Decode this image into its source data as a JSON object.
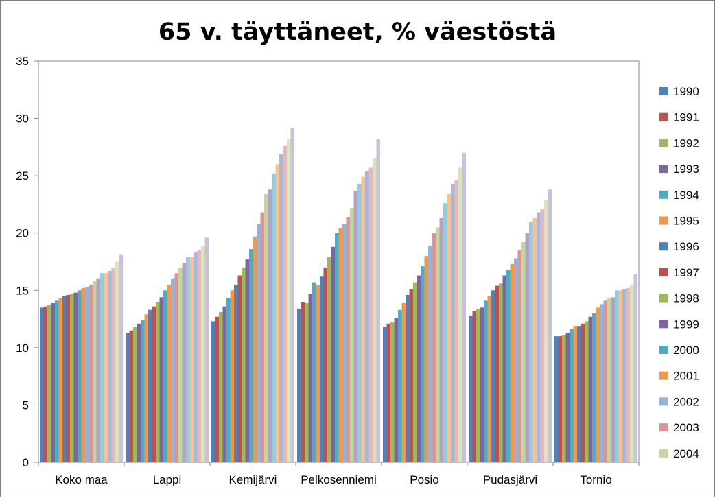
{
  "chart_data": {
    "type": "bar",
    "title": "65 v. täyttäneet, % väestöstä",
    "xlabel": "",
    "ylabel": "",
    "ylim": [
      0,
      35
    ],
    "yticks": [
      "0",
      "5",
      "10",
      "15",
      "20",
      "25",
      "30",
      "35"
    ],
    "grid": "horizontal-off",
    "legend_position": "right",
    "categories": [
      "Koko maa",
      "Lappi",
      "Kemijärvi",
      "Pelkosenniemi",
      "Posio",
      "Pudasjärvi",
      "Tornio"
    ],
    "series": [
      {
        "name": "1990",
        "color": "#4F81BD",
        "values": [
          13.5,
          11.3,
          12.3,
          13.4,
          11.8,
          12.8,
          11.0
        ]
      },
      {
        "name": "1991",
        "color": "#C0504D",
        "values": [
          13.6,
          11.5,
          12.7,
          14.0,
          12.1,
          13.2,
          11.0
        ]
      },
      {
        "name": "1992",
        "color": "#9BBB59",
        "values": [
          13.7,
          11.8,
          13.1,
          13.9,
          12.2,
          13.4,
          11.1
        ]
      },
      {
        "name": "1993",
        "color": "#8064A2",
        "values": [
          13.9,
          12.1,
          13.6,
          14.7,
          12.6,
          13.5,
          11.3
        ]
      },
      {
        "name": "1994",
        "color": "#4BACC6",
        "values": [
          14.1,
          12.4,
          14.3,
          15.7,
          13.3,
          14.1,
          11.6
        ]
      },
      {
        "name": "1995",
        "color": "#F79646",
        "values": [
          14.3,
          12.9,
          15.0,
          15.5,
          13.9,
          14.5,
          11.9
        ]
      },
      {
        "name": "1996",
        "color": "#4F81BD",
        "values": [
          14.5,
          13.3,
          15.5,
          16.2,
          14.6,
          15.0,
          11.9
        ]
      },
      {
        "name": "1997",
        "color": "#C0504D",
        "values": [
          14.6,
          13.6,
          16.3,
          17.0,
          15.1,
          15.4,
          12.1
        ]
      },
      {
        "name": "1998",
        "color": "#9BBB59",
        "values": [
          14.7,
          14.0,
          17.0,
          17.9,
          15.7,
          15.6,
          12.3
        ]
      },
      {
        "name": "1999",
        "color": "#8064A2",
        "values": [
          14.8,
          14.4,
          17.7,
          18.8,
          16.3,
          16.3,
          12.7
        ]
      },
      {
        "name": "2000",
        "color": "#4BACC6",
        "values": [
          15.0,
          15.0,
          18.6,
          20.0,
          17.1,
          16.8,
          13.0
        ]
      },
      {
        "name": "2001",
        "color": "#F79646",
        "values": [
          15.2,
          15.5,
          19.7,
          20.4,
          18.0,
          17.3,
          13.5
        ]
      },
      {
        "name": "2002",
        "color": "#95B3D7",
        "values": [
          15.3,
          16.0,
          20.8,
          20.8,
          18.9,
          17.8,
          13.8
        ]
      },
      {
        "name": "2003",
        "color": "#D99694",
        "values": [
          15.5,
          16.5,
          21.8,
          21.4,
          20.0,
          18.5,
          14.1
        ]
      },
      {
        "name": "2004",
        "color": "#C3D69B",
        "values": [
          15.8,
          17.0,
          23.4,
          22.2,
          20.5,
          19.2,
          14.3
        ]
      },
      {
        "name": "",
        "color": "#B2A2C7",
        "values": [
          16.0,
          17.4,
          23.8,
          23.7,
          21.3,
          20.0,
          14.4
        ]
      },
      {
        "name": "",
        "color": "#93CDDD",
        "values": [
          16.5,
          17.9,
          25.2,
          24.3,
          22.6,
          21.0,
          15.0
        ]
      },
      {
        "name": "",
        "color": "#FAC090",
        "values": [
          16.5,
          17.9,
          26.0,
          24.9,
          23.4,
          21.3,
          15.0
        ]
      },
      {
        "name": "",
        "color": "#A6B8DD",
        "values": [
          16.7,
          18.3,
          26.9,
          25.4,
          24.3,
          21.8,
          15.1
        ]
      },
      {
        "name": "",
        "color": "#E6B9B8",
        "values": [
          17.0,
          18.5,
          27.6,
          25.7,
          24.6,
          22.1,
          15.2
        ]
      },
      {
        "name": "",
        "color": "#D7E4BD",
        "values": [
          17.5,
          18.9,
          28.2,
          26.5,
          25.7,
          22.9,
          15.5
        ]
      },
      {
        "name": "",
        "color": "#CCC1DA",
        "values": [
          18.1,
          19.6,
          29.2,
          28.2,
          27.0,
          23.8,
          16.4
        ]
      }
    ]
  }
}
